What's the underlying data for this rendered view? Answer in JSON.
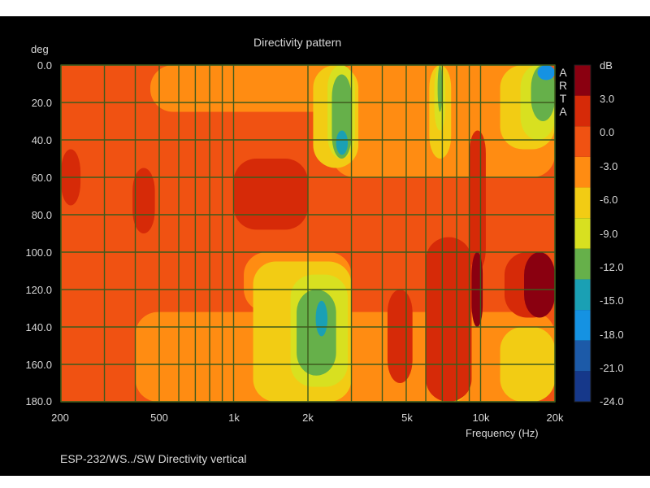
{
  "chart_data": {
    "type": "heatmap",
    "title": "Directivity pattern",
    "xlabel": "Frequency (Hz)",
    "ylabel": "deg",
    "x_scale": "log",
    "x_range": [
      200,
      20000
    ],
    "y_range": [
      0,
      180
    ],
    "x_ticks": [
      200,
      500,
      1000,
      2000,
      5000,
      10000,
      20000
    ],
    "x_tick_labels": [
      "200",
      "500",
      "1k",
      "2k",
      "5k",
      "10k",
      "20k"
    ],
    "x_minor_grid": [
      300,
      400,
      600,
      700,
      800,
      900,
      3000,
      4000,
      6000,
      7000,
      8000,
      9000
    ],
    "y_ticks": [
      0,
      20,
      40,
      60,
      80,
      100,
      120,
      140,
      160,
      180
    ],
    "y_tick_labels": [
      "0.0",
      "20.0",
      "40.0",
      "60.0",
      "80.0",
      "100.0",
      "120.0",
      "140.0",
      "160.0",
      "180.0"
    ],
    "grid": true,
    "colorbar": {
      "unit": "dB",
      "tick_values": [
        3,
        0,
        -3,
        -6,
        -9,
        -12,
        -15,
        -18,
        -21,
        -24
      ],
      "tick_labels": [
        "3.0",
        "0.0",
        "-3.0",
        "-6.0",
        "-9.0",
        "-12.0",
        "-15.0",
        "-18.0",
        "-21.0",
        "-24.0"
      ],
      "bands": [
        {
          "range": [
            3,
            6
          ],
          "color": "#8a0010"
        },
        {
          "range": [
            0,
            3
          ],
          "color": "#d62a08"
        },
        {
          "range": [
            -3,
            0
          ],
          "color": "#f05212"
        },
        {
          "range": [
            -6,
            -3
          ],
          "color": "#ff8c12"
        },
        {
          "range": [
            -9,
            -6
          ],
          "color": "#f2cc14"
        },
        {
          "range": [
            -12,
            -9
          ],
          "color": "#d8e020"
        },
        {
          "range": [
            -15,
            -12
          ],
          "color": "#66b04a"
        },
        {
          "range": [
            -18,
            -15
          ],
          "color": "#1aa0b4"
        },
        {
          "range": [
            -21,
            -18
          ],
          "color": "#1592e2"
        },
        {
          "range": [
            -24,
            -21
          ],
          "color": "#1c5aa8"
        },
        {
          "range": [
            -27,
            -24
          ],
          "color": "#16388a"
        }
      ]
    },
    "base_level_db": -1.5,
    "regions": [
      {
        "level": -4.5,
        "f_range": [
          460,
          3000
        ],
        "deg_range": [
          0,
          25
        ]
      },
      {
        "level": -4.5,
        "f_range": [
          2500,
          20000
        ],
        "deg_range": [
          0,
          60
        ]
      },
      {
        "level": -7.5,
        "f_range": [
          2100,
          3200
        ],
        "deg_range": [
          0,
          55
        ]
      },
      {
        "level": -10.5,
        "f_range": [
          2400,
          3100
        ],
        "deg_range": [
          0,
          50
        ]
      },
      {
        "level": -13.5,
        "f_range": [
          2500,
          3000
        ],
        "deg_range": [
          5,
          50
        ]
      },
      {
        "level": -16.5,
        "f_range": [
          2600,
          2900
        ],
        "deg_range": [
          35,
          48
        ]
      },
      {
        "level": -7.5,
        "f_range": [
          6200,
          7600
        ],
        "deg_range": [
          0,
          50
        ]
      },
      {
        "level": -10.5,
        "f_range": [
          6500,
          7200
        ],
        "deg_range": [
          0,
          35
        ]
      },
      {
        "level": -13.5,
        "f_range": [
          6700,
          7000
        ],
        "deg_range": [
          0,
          25
        ]
      },
      {
        "level": -7.5,
        "f_range": [
          12000,
          20000
        ],
        "deg_range": [
          0,
          45
        ]
      },
      {
        "level": -10.5,
        "f_range": [
          14500,
          20000
        ],
        "deg_range": [
          0,
          40
        ]
      },
      {
        "level": -13.5,
        "f_range": [
          16000,
          20000
        ],
        "deg_range": [
          0,
          30
        ]
      },
      {
        "level": -19.5,
        "f_range": [
          17000,
          20000
        ],
        "deg_range": [
          0,
          8
        ]
      },
      {
        "level": -4.5,
        "f_range": [
          400,
          20000
        ],
        "deg_range": [
          132,
          180
        ]
      },
      {
        "level": -4.5,
        "f_range": [
          1100,
          3000
        ],
        "deg_range": [
          100,
          132
        ]
      },
      {
        "level": -7.5,
        "f_range": [
          1200,
          3000
        ],
        "deg_range": [
          105,
          180
        ]
      },
      {
        "level": -10.5,
        "f_range": [
          1700,
          2900
        ],
        "deg_range": [
          112,
          172
        ]
      },
      {
        "level": -13.5,
        "f_range": [
          1800,
          2600
        ],
        "deg_range": [
          120,
          166
        ]
      },
      {
        "level": -16.5,
        "f_range": [
          2150,
          2400
        ],
        "deg_range": [
          126,
          145
        ]
      },
      {
        "level": -7.5,
        "f_range": [
          6800,
          9000
        ],
        "deg_range": [
          110,
          180
        ]
      },
      {
        "level": -10.5,
        "f_range": [
          7200,
          8600
        ],
        "deg_range": [
          125,
          175
        ]
      },
      {
        "level": -7.5,
        "f_range": [
          12000,
          20000
        ],
        "deg_range": [
          140,
          180
        ]
      },
      {
        "level": 1.5,
        "f_range": [
          6000,
          9200
        ],
        "deg_range": [
          92,
          180
        ]
      },
      {
        "level": 1.5,
        "f_range": [
          1000,
          2000
        ],
        "deg_range": [
          50,
          88
        ]
      },
      {
        "level": 1.5,
        "f_range": [
          200,
          240
        ],
        "deg_range": [
          45,
          75
        ]
      },
      {
        "level": 1.5,
        "f_range": [
          390,
          480
        ],
        "deg_range": [
          55,
          90
        ]
      },
      {
        "level": 1.5,
        "f_range": [
          9000,
          10500
        ],
        "deg_range": [
          35,
          110
        ]
      },
      {
        "level": 1.5,
        "f_range": [
          4200,
          5300
        ],
        "deg_range": [
          120,
          170
        ]
      },
      {
        "level": 1.5,
        "f_range": [
          12500,
          20000
        ],
        "deg_range": [
          100,
          135
        ]
      },
      {
        "level": 4.5,
        "f_range": [
          9200,
          10200
        ],
        "deg_range": [
          100,
          140
        ]
      },
      {
        "level": 4.5,
        "f_range": [
          15000,
          20000
        ],
        "deg_range": [
          100,
          135
        ]
      }
    ]
  },
  "labels": {
    "title": "Directivity pattern",
    "yunit": "deg",
    "xlabel": "Frequency (Hz)",
    "cbar_unit": "dB",
    "footer": "ESP-232/WS../SW   Directivity vertical",
    "watermark": [
      "A",
      "R",
      "T",
      "A"
    ]
  },
  "colors": {
    "background": "#000000",
    "text": "#d8d8d8",
    "grid": "#3e5a1c"
  }
}
